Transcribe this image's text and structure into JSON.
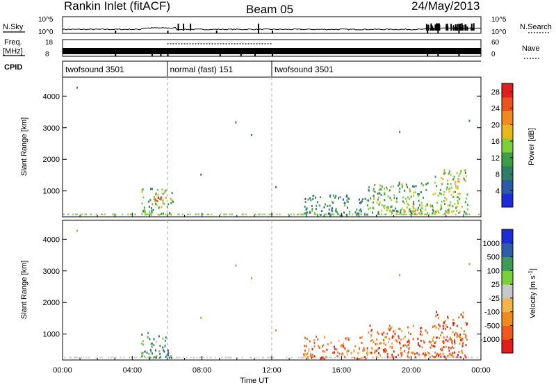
{
  "header": {
    "station": "Rankin Inlet (fitACF)",
    "beam": "Beam 05",
    "date": "24/May/2013"
  },
  "top_panels": {
    "nsky_label": "N.Sky",
    "nsearch_label": "N.Search",
    "freq_label_1": "Freq.",
    "freq_label_2": "[MHz]",
    "nave_label": "Nave",
    "cpid_label": "CPID",
    "nsky_ticks": [
      "10^5",
      "10^0"
    ],
    "nsearch_ticks": [
      "10^5",
      "10^0"
    ],
    "freq_ticks": [
      "18",
      "8"
    ],
    "nave_ticks": [
      "60",
      "0"
    ]
  },
  "cpid_segments": [
    {
      "label": "twofsound 3501",
      "start": 0,
      "end": 6
    },
    {
      "label": "normal (fast) 151",
      "start": 6,
      "end": 12
    },
    {
      "label": "twofsound 3501",
      "start": 12,
      "end": 24
    }
  ],
  "colors": {
    "power": [
      "#1e2bd6",
      "#2c5aa8",
      "#2e7d6a",
      "#3e9c4a",
      "#7fcf3c",
      "#e6b81e",
      "#f08a1e",
      "#e8531e",
      "#e01e1e"
    ],
    "velocity": [
      "#e01e1e",
      "#f0581e",
      "#f08a1e",
      "#f4b44a",
      "#c8c8c8",
      "#79cf3c",
      "#3d9a5a",
      "#2e5ea6",
      "#1e2bd6"
    ]
  },
  "chart_data": [
    {
      "type": "heatmap",
      "name": "power",
      "xlabel": "Time UT",
      "ylabel": "Slant Range [km]",
      "x_range_hours": [
        0,
        24
      ],
      "ylim": [
        180,
        4600
      ],
      "y_ticks": [
        1000,
        2000,
        3000,
        4000
      ],
      "colorbar_label": "Power [dB]",
      "colorbar_ticks": [
        "4",
        "8",
        "12",
        "16",
        "20",
        "24",
        "28"
      ],
      "colorbar_range": [
        0,
        30
      ],
      "clusters": [
        {
          "t0": 4.5,
          "t1": 6.3,
          "r0": 260,
          "r1": 1100,
          "level": 0.45
        },
        {
          "t0": 5.1,
          "t1": 5.7,
          "r0": 600,
          "r1": 1000,
          "level": 0.85
        },
        {
          "t0": 13.8,
          "t1": 17.5,
          "r0": 250,
          "r1": 900,
          "level": 0.3
        },
        {
          "t0": 17.5,
          "t1": 21.3,
          "r0": 300,
          "r1": 1300,
          "level": 0.45
        },
        {
          "t0": 19.5,
          "t1": 20.5,
          "r0": 350,
          "r1": 650,
          "level": 0.65
        },
        {
          "t0": 21.3,
          "t1": 23.2,
          "r0": 300,
          "r1": 1700,
          "level": 0.5
        }
      ]
    },
    {
      "type": "heatmap",
      "name": "velocity",
      "xlabel": "Time UT",
      "ylabel": "Slant Range [km]",
      "x_range_hours": [
        0,
        24
      ],
      "x_ticks": [
        "00:00",
        "04:00",
        "08:00",
        "12:00",
        "16:00",
        "20:00",
        "00:00"
      ],
      "ylim": [
        180,
        4600
      ],
      "y_ticks": [
        1000,
        2000,
        3000,
        4000
      ],
      "colorbar_label": "Velocity [m s^-1]",
      "colorbar_ticks": [
        "1000",
        "500",
        "100",
        "25",
        "-25",
        "-100",
        "-500",
        "-1000"
      ],
      "clusters": [
        {
          "t0": 4.5,
          "t1": 6.3,
          "r0": 280,
          "r1": 1100,
          "level": 0.72
        },
        {
          "t0": 13.8,
          "t1": 17.5,
          "r0": 250,
          "r1": 950,
          "level": 0.22
        },
        {
          "t0": 17.5,
          "t1": 21.3,
          "r0": 300,
          "r1": 1300,
          "level": 0.2
        },
        {
          "t0": 21.3,
          "t1": 23.2,
          "r0": 300,
          "r1": 1800,
          "level": 0.15
        }
      ]
    }
  ]
}
